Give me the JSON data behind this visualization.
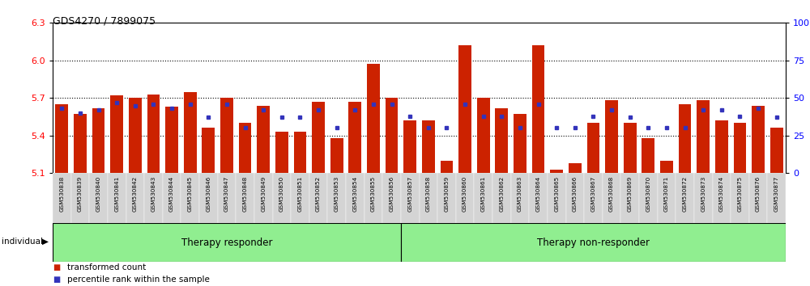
{
  "title": "GDS4270 / 7899075",
  "samples": [
    "GSM530838",
    "GSM530839",
    "GSM530840",
    "GSM530841",
    "GSM530842",
    "GSM530843",
    "GSM530844",
    "GSM530845",
    "GSM530846",
    "GSM530847",
    "GSM530848",
    "GSM530849",
    "GSM530850",
    "GSM530851",
    "GSM530852",
    "GSM530853",
    "GSM530854",
    "GSM530855",
    "GSM530856",
    "GSM530857",
    "GSM530858",
    "GSM530859",
    "GSM530860",
    "GSM530861",
    "GSM530862",
    "GSM530863",
    "GSM530864",
    "GSM530865",
    "GSM530866",
    "GSM530867",
    "GSM530868",
    "GSM530869",
    "GSM530870",
    "GSM530871",
    "GSM530872",
    "GSM530873",
    "GSM530874",
    "GSM530875",
    "GSM530876",
    "GSM530877"
  ],
  "red_values": [
    5.65,
    5.57,
    5.62,
    5.72,
    5.7,
    5.73,
    5.63,
    5.75,
    5.46,
    5.7,
    5.5,
    5.64,
    5.43,
    5.43,
    5.67,
    5.38,
    5.67,
    5.97,
    5.7,
    5.52,
    5.52,
    5.2,
    6.12,
    5.7,
    5.62,
    5.57,
    6.12,
    5.13,
    5.18,
    5.5,
    5.68,
    5.5,
    5.38,
    5.2,
    5.65,
    5.68,
    5.52,
    5.5,
    5.64,
    5.46
  ],
  "blue_values": [
    43,
    40,
    42,
    47,
    45,
    46,
    43,
    46,
    37,
    46,
    30,
    42,
    37,
    37,
    42,
    30,
    42,
    46,
    46,
    38,
    30,
    30,
    46,
    38,
    38,
    30,
    46,
    30,
    30,
    38,
    42,
    37,
    30,
    30,
    30,
    42,
    42,
    38,
    43,
    37
  ],
  "ymin": 5.1,
  "ymax": 6.3,
  "yticks_left": [
    5.1,
    5.4,
    5.7,
    6.0,
    6.3
  ],
  "yticks_right": [
    0,
    25,
    50,
    75,
    100
  ],
  "grid_lines": [
    5.4,
    5.7,
    6.0
  ],
  "bar_color": "#cc2200",
  "blue_color": "#3333bb",
  "group_split": 19,
  "group1_label": "Therapy responder",
  "group2_label": "Therapy non-responder",
  "group_color": "#90ee90",
  "label_bg": "#d4d4d4"
}
